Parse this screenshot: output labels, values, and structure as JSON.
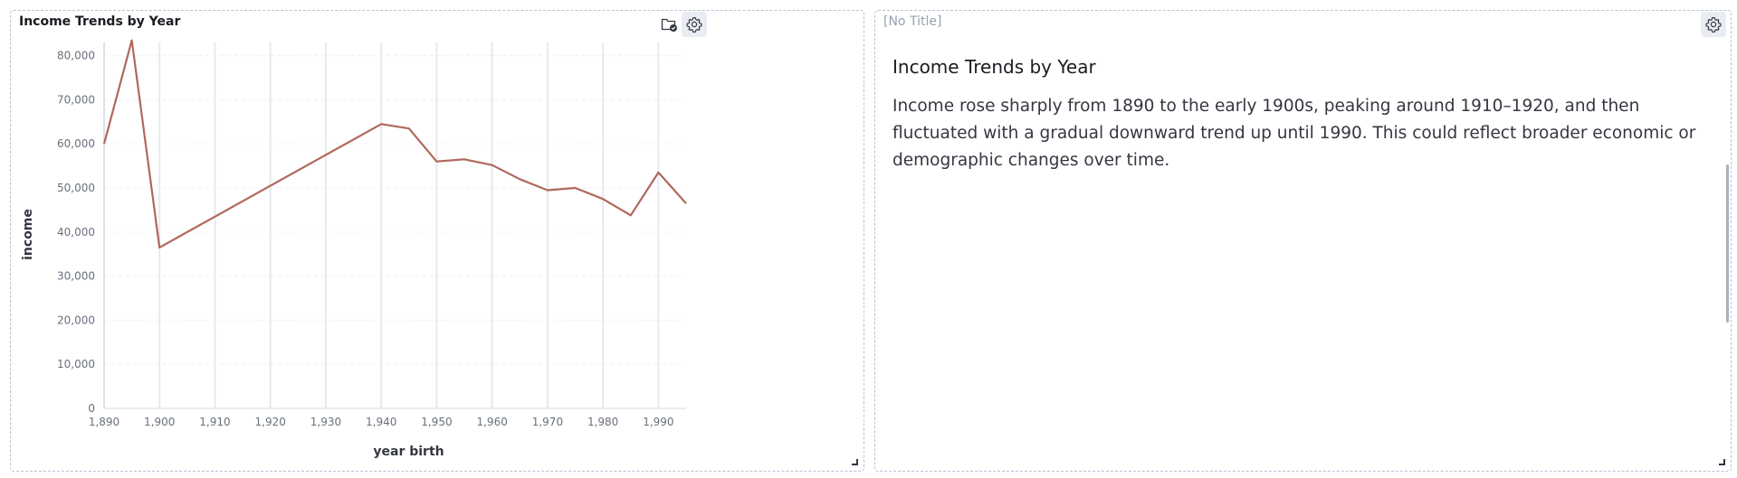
{
  "left_panel": {
    "title": "Income Trends by Year",
    "icons": [
      "folder-check-icon",
      "gear-icon"
    ]
  },
  "right_panel": {
    "title": "[No Title]",
    "icons": [
      "gear-icon"
    ],
    "heading": "Income Trends by Year",
    "paragraph": "Income rose sharply from 1890 to the early 1900s, peaking around 1910–1920, and then fluctuated with a gradual downward trend up until 1990. This could reflect broader economic or demographic changes over time."
  },
  "colors": {
    "line": "#b0685c",
    "grid": "#e6e9ee",
    "border": "#b8c2d4"
  },
  "chart_data": {
    "type": "line",
    "xlabel": "year birth",
    "ylabel": "income",
    "xlim": [
      1890,
      1995
    ],
    "ylim": [
      0,
      83000
    ],
    "x_ticks": [
      1890,
      1900,
      1910,
      1920,
      1930,
      1940,
      1950,
      1960,
      1970,
      1980,
      1990
    ],
    "x_tick_labels": [
      "1,890",
      "1,900",
      "1,910",
      "1,920",
      "1,930",
      "1,940",
      "1,950",
      "1,960",
      "1,970",
      "1,980",
      "1,990"
    ],
    "y_ticks": [
      0,
      10000,
      20000,
      30000,
      40000,
      50000,
      60000,
      70000,
      80000
    ],
    "y_tick_labels": [
      "0",
      "10,000",
      "20,000",
      "30,000",
      "40,000",
      "50,000",
      "60,000",
      "70,000",
      "80,000"
    ],
    "grid": true,
    "series": [
      {
        "x": [
          1890,
          1895,
          1900,
          1940,
          1945,
          1950,
          1955,
          1960,
          1965,
          1970,
          1975,
          1980,
          1985,
          1990,
          1995
        ],
        "values": [
          60000,
          83500,
          36500,
          64500,
          63500,
          56000,
          56500,
          55200,
          52000,
          49500,
          50000,
          47500,
          43800,
          53500,
          46500
        ]
      }
    ]
  }
}
